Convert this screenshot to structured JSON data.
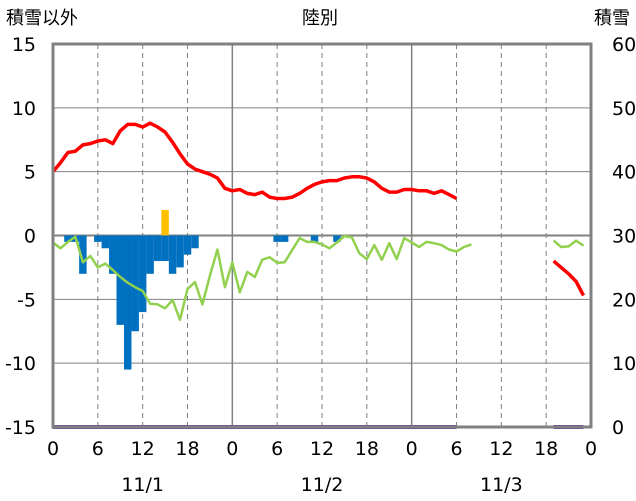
{
  "chart_data": {
    "type": "line",
    "title": "陸別",
    "left_axis": {
      "label": "積雪以外",
      "ylim": [
        -15,
        15
      ],
      "ticks": [
        "15",
        "10",
        "5",
        "0",
        "-5",
        "-10",
        "-15"
      ]
    },
    "right_axis": {
      "label": "積雪",
      "ylim": [
        0,
        60
      ],
      "ticks": [
        "60",
        "50",
        "40",
        "30",
        "20",
        "10",
        "0"
      ]
    },
    "x_axis": {
      "unit": "hours from 11/1 00:00",
      "xlim": [
        0,
        72
      ],
      "tick_labels": [
        "0",
        "6",
        "12",
        "18",
        "0",
        "6",
        "12",
        "18",
        "0",
        "6",
        "12",
        "18",
        "0"
      ],
      "date_labels": [
        "11/1",
        "11/2",
        "11/3"
      ]
    },
    "grid": true,
    "colors": {
      "temperature": "#ff0000",
      "precip": "#0070c0",
      "sunshine": "#ffc000",
      "third": "#92d050",
      "snow": "#7030a0",
      "frame": "#808080"
    },
    "series": [
      {
        "axis": "left",
        "style": "line",
        "color": "#ff0000",
        "points": [
          [
            0,
            5.0
          ],
          [
            1,
            5.7
          ],
          [
            2,
            6.5
          ],
          [
            3,
            6.6
          ],
          [
            4,
            7.1
          ],
          [
            5,
            7.2
          ],
          [
            6,
            7.4
          ],
          [
            7,
            7.5
          ],
          [
            8,
            7.2
          ],
          [
            9,
            8.2
          ],
          [
            10,
            8.7
          ],
          [
            11,
            8.7
          ],
          [
            12,
            8.5
          ],
          [
            13,
            8.8
          ],
          [
            14,
            8.5
          ],
          [
            15,
            8.1
          ],
          [
            16,
            7.3
          ],
          [
            17,
            6.4
          ],
          [
            18,
            5.6
          ],
          [
            19,
            5.2
          ],
          [
            20,
            5.0
          ],
          [
            21,
            4.8
          ],
          [
            22,
            4.5
          ],
          [
            23,
            3.7
          ],
          [
            24,
            3.5
          ],
          [
            25,
            3.6
          ],
          [
            26,
            3.3
          ],
          [
            27,
            3.2
          ],
          [
            28,
            3.4
          ],
          [
            29,
            3.0
          ],
          [
            30,
            2.9
          ],
          [
            31,
            2.9
          ],
          [
            32,
            3.0
          ],
          [
            33,
            3.3
          ],
          [
            34,
            3.7
          ],
          [
            35,
            4.0
          ],
          [
            36,
            4.2
          ],
          [
            37,
            4.3
          ],
          [
            38,
            4.3
          ],
          [
            39,
            4.5
          ],
          [
            40,
            4.6
          ],
          [
            41,
            4.6
          ],
          [
            42,
            4.5
          ],
          [
            43,
            4.2
          ],
          [
            44,
            3.7
          ],
          [
            45,
            3.4
          ],
          [
            46,
            3.4
          ],
          [
            47,
            3.6
          ],
          [
            48,
            3.6
          ],
          [
            49,
            3.5
          ],
          [
            50,
            3.5
          ],
          [
            51,
            3.3
          ],
          [
            52,
            3.5
          ],
          [
            53,
            3.2
          ],
          [
            54,
            2.9
          ],
          null,
          [
            67,
            -2.0
          ],
          [
            68,
            -2.5
          ],
          [
            69,
            -3.0
          ],
          [
            70,
            -3.6
          ],
          [
            71,
            -4.7
          ]
        ]
      },
      {
        "axis": "right",
        "style": "line",
        "color": "#92d050",
        "points": [
          [
            0,
            28.9
          ],
          [
            1,
            28.0
          ],
          [
            2,
            29.0
          ],
          [
            3,
            29.8
          ],
          [
            4,
            25.8
          ],
          [
            5,
            26.8
          ],
          [
            6,
            25.0
          ],
          [
            7,
            25.6
          ],
          [
            8,
            24.6
          ],
          [
            9,
            23.5
          ],
          [
            10,
            22.6
          ],
          [
            11,
            21.9
          ],
          [
            12,
            21.3
          ],
          [
            13,
            19.3
          ],
          [
            14,
            19.2
          ],
          [
            15,
            18.6
          ],
          [
            16,
            19.9
          ],
          [
            17,
            16.8
          ],
          [
            18,
            21.6
          ],
          [
            19,
            22.7
          ],
          [
            20,
            19.2
          ],
          [
            21,
            23.7
          ],
          [
            22,
            27.8
          ],
          [
            23,
            21.9
          ],
          [
            24,
            25.8
          ],
          [
            25,
            21.1
          ],
          [
            26,
            24.3
          ],
          [
            27,
            23.5
          ],
          [
            28,
            26.2
          ],
          [
            29,
            26.6
          ],
          [
            30,
            25.7
          ],
          [
            31,
            25.8
          ],
          [
            32,
            27.7
          ],
          [
            33,
            29.6
          ],
          [
            34,
            29.0
          ],
          [
            35,
            29.0
          ],
          [
            36,
            28.6
          ],
          [
            37,
            28.0
          ],
          [
            38,
            28.9
          ],
          [
            39,
            29.9
          ],
          [
            40,
            29.7
          ],
          [
            41,
            27.2
          ],
          [
            42,
            26.3
          ],
          [
            43,
            28.5
          ],
          [
            44,
            26.2
          ],
          [
            45,
            28.8
          ],
          [
            46,
            26.3
          ],
          [
            47,
            29.6
          ],
          [
            48,
            28.9
          ],
          [
            49,
            28.2
          ],
          [
            50,
            29.0
          ],
          [
            51,
            28.8
          ],
          [
            52,
            28.5
          ],
          [
            53,
            27.8
          ],
          [
            54,
            27.5
          ],
          [
            55,
            28.2
          ],
          [
            56,
            28.6
          ],
          null,
          [
            67,
            29.2
          ],
          [
            68,
            28.2
          ],
          [
            69,
            28.3
          ],
          [
            70,
            29.2
          ],
          [
            71,
            28.4
          ]
        ]
      },
      {
        "axis": "right",
        "style": "line",
        "color": "#7030a0",
        "points": [
          [
            0,
            0
          ],
          [
            54,
            0
          ],
          null,
          [
            67,
            0
          ],
          [
            71,
            0
          ]
        ]
      },
      {
        "axis": "left",
        "style": "bars",
        "color": "#0070c0",
        "values": [
          [
            2,
            -0.5
          ],
          [
            3,
            -0.5
          ],
          [
            4,
            -3.0
          ],
          [
            6,
            -0.5
          ],
          [
            7,
            -1.0
          ],
          [
            8,
            -3.0
          ],
          [
            9,
            -7.0
          ],
          [
            10,
            -10.5
          ],
          [
            11,
            -7.5
          ],
          [
            12,
            -6.0
          ],
          [
            13,
            -3.0
          ],
          [
            14,
            -2.0
          ],
          [
            15,
            -2.0
          ],
          [
            16,
            -3.0
          ],
          [
            17,
            -2.5
          ],
          [
            18,
            -1.5
          ],
          [
            19,
            -1.0
          ],
          [
            30,
            -0.5
          ],
          [
            31,
            -0.5
          ],
          [
            35,
            -0.5
          ],
          [
            38,
            -0.5
          ]
        ]
      },
      {
        "axis": "left",
        "style": "bars",
        "color": "#ffc000",
        "values": [
          [
            15,
            2.0
          ]
        ]
      }
    ]
  }
}
